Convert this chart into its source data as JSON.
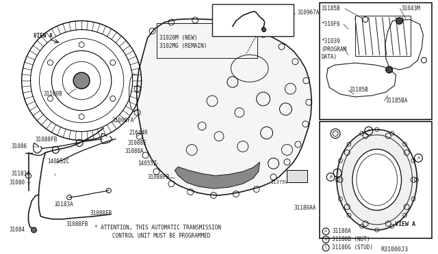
{
  "bg_color": "#ffffff",
  "fig_width": 6.4,
  "fig_height": 3.72,
  "dpi": 100,
  "diagram_code": "R31000J3",
  "attention_line1": "* ATTENTION, THIS AUTOMATIC TRANSMISSION",
  "attention_line2": "CONTROL UNIT MUST BE PROGRAMMED",
  "border_color": "#1a1a1a",
  "line_color": "#1a1a1a"
}
